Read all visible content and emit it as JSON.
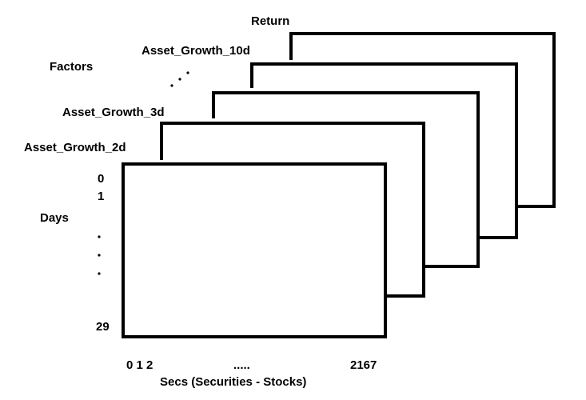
{
  "layers": [
    {
      "label": "Return"
    },
    {
      "label": "Asset_Growth_10d"
    },
    {
      "label": "Asset_Growth_3d"
    },
    {
      "label": "Asset_Growth_2d"
    }
  ],
  "factors_label": "Factors",
  "days_label": "Days",
  "row_ticks": {
    "first": "0",
    "second": "1",
    "last": "29"
  },
  "col_ticks": {
    "start": "0 1 2",
    "ellipsis": ".....",
    "last": "2167"
  },
  "x_axis_label": "Secs (Securities - Stocks)",
  "colors": {
    "stroke": "#000000",
    "fill": "#ffffff"
  }
}
